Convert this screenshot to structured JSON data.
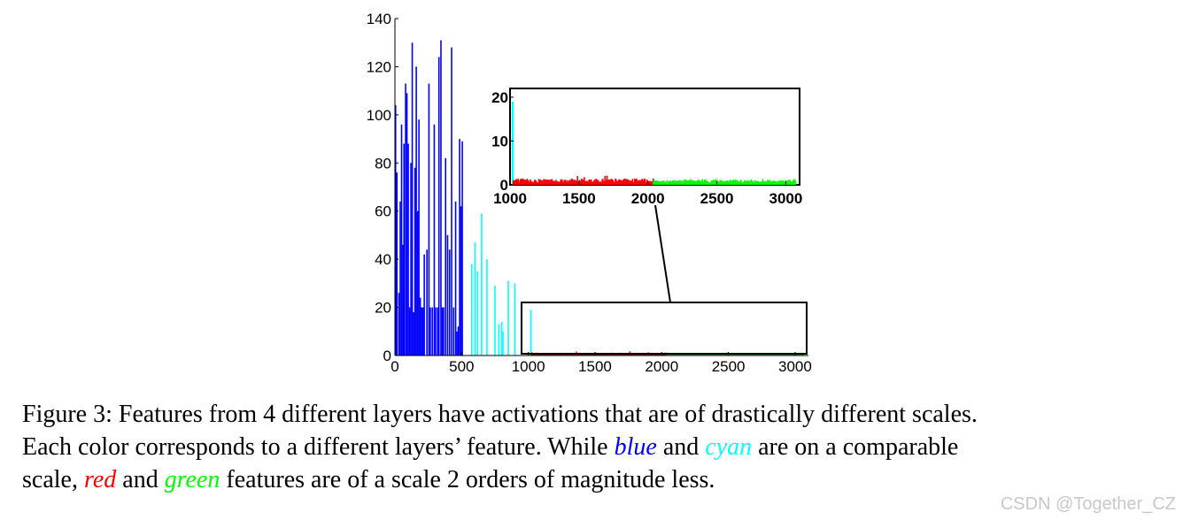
{
  "chart_data": {
    "type": "bar",
    "xlim": [
      0,
      3100
    ],
    "ylim": [
      0,
      140
    ],
    "xticks": [
      "0",
      "500",
      "1000",
      "1500",
      "2000",
      "2500",
      "3000"
    ],
    "yticks": [
      "0",
      "20",
      "40",
      "60",
      "80",
      "100",
      "120",
      "140"
    ],
    "series": [
      {
        "name": "blue",
        "color": "#0000ff",
        "x": [
          5,
          15,
          30,
          40,
          50,
          60,
          68,
          80,
          90,
          100,
          110,
          120,
          130,
          140,
          150,
          160,
          170,
          180,
          190,
          200,
          210,
          220,
          240,
          255,
          265,
          280,
          295,
          305,
          320,
          330,
          345,
          355,
          365,
          380,
          395,
          410,
          425,
          440,
          455,
          465,
          475,
          485,
          495,
          505
        ],
        "values": [
          104,
          76,
          26,
          64,
          96,
          46,
          88,
          113,
          109,
          88,
          20,
          80,
          130,
          18,
          78,
          120,
          60,
          98,
          24,
          20,
          20,
          42,
          44,
          113,
          20,
          20,
          96,
          20,
          20,
          124,
          131,
          20,
          20,
          82,
          50,
          44,
          128,
          20,
          64,
          10,
          12,
          90,
          62,
          89
        ]
      },
      {
        "name": "cyan",
        "color": "#00ffff",
        "x": [
          575,
          600,
          620,
          650,
          690,
          750,
          780,
          800,
          810,
          850,
          900,
          1020
        ],
        "values": [
          38,
          47,
          35,
          59,
          40,
          29,
          13,
          14,
          10,
          31,
          30,
          19
        ]
      },
      {
        "name": "red",
        "color": "#ff0000",
        "x_range": [
          1024,
          2040
        ],
        "level": 0.6,
        "peak": 2.1
      },
      {
        "name": "green",
        "color": "#00ff00",
        "x_range": [
          2040,
          3072
        ],
        "level": 0.5,
        "peak": 1.3
      }
    ],
    "inset": {
      "xlim": [
        1000,
        3100
      ],
      "ylim": [
        0,
        22
      ],
      "xticks": [
        "1000",
        "1500",
        "2000",
        "2500",
        "3000"
      ],
      "yticks": [
        "0",
        "10",
        "20"
      ],
      "source_range": [
        1000,
        3100
      ],
      "cyan_spike": {
        "x": 1020,
        "value": 19
      }
    }
  },
  "caption": {
    "line1": "Figure 3: Features from 4 different layers have activations that are of drastically different scales.",
    "line2_a": "Each color corresponds to a different layers’ feature.  While ",
    "w_blue": "blue",
    "line2_b": " and ",
    "w_cyan": "cyan",
    "line2_c": " are on a comparable",
    "line3_a": "scale, ",
    "w_red": "red",
    "line3_b": " and ",
    "w_green": "green",
    "line3_c": " features are of a scale 2 orders of magnitude less."
  },
  "watermark": "CSDN @Together_CZ"
}
